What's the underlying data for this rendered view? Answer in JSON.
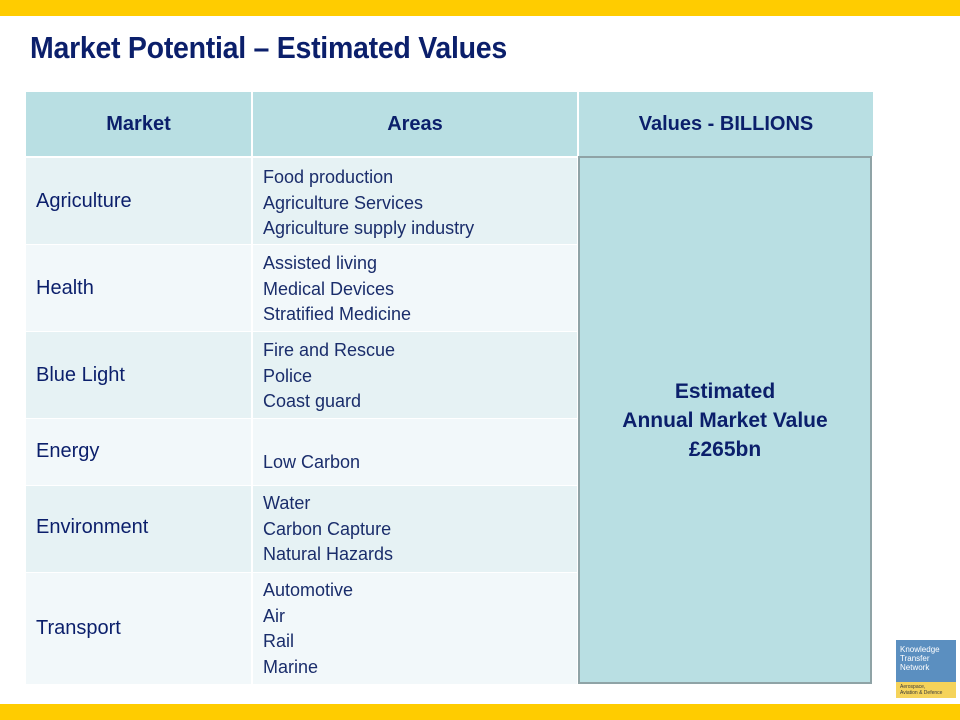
{
  "title": "Market Potential – Estimated Values",
  "table": {
    "headers": {
      "market": "Market",
      "areas": "Areas",
      "values": "Values - BILLIONS"
    },
    "rows": [
      {
        "market": "Agriculture",
        "areas": [
          "Food production",
          "Agriculture Services",
          "Agriculture supply industry"
        ]
      },
      {
        "market": "Health",
        "areas": [
          "Assisted living",
          "Medical Devices",
          "Stratified Medicine"
        ]
      },
      {
        "market": "Blue Light",
        "areas": [
          "Fire and Rescue",
          "Police",
          "Coast guard"
        ]
      },
      {
        "market": "Energy",
        "areas": [
          "Low Carbon"
        ]
      },
      {
        "market": "Environment",
        "areas": [
          "Water",
          "Carbon Capture",
          "Natural Hazards"
        ]
      },
      {
        "market": "Transport",
        "areas": [
          "Automotive",
          "Air",
          "Rail",
          "Marine"
        ]
      }
    ],
    "value_box": {
      "line1": "Estimated",
      "line2": "Annual Market Value",
      "line3": "£265bn"
    }
  },
  "logo": {
    "line1": "Knowledge",
    "line2": "Transfer",
    "line3": "Network",
    "sub1": "Aerospace,",
    "sub2": "Aviation & Defence"
  },
  "colors": {
    "accent_bar": "#ffcc00",
    "header_fill": "#b9dfe3",
    "title_text": "#0b1f6b"
  }
}
